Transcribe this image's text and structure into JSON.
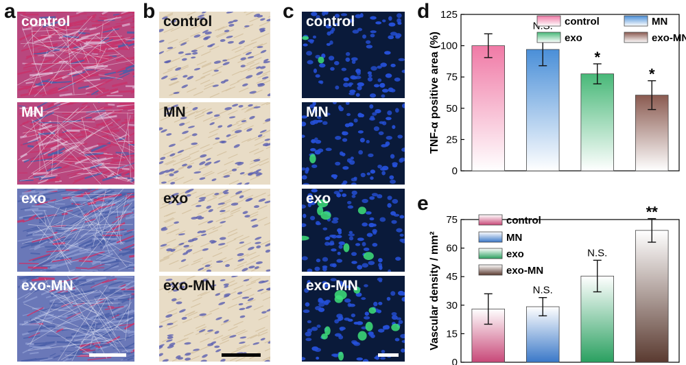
{
  "panels": {
    "a": {
      "label": "a",
      "tiles": [
        "control",
        "MN",
        "exo",
        "exo-MN"
      ]
    },
    "b": {
      "label": "b",
      "tiles": [
        "control",
        "MN",
        "exo",
        "exo-MN"
      ]
    },
    "c": {
      "label": "c",
      "tiles": [
        "control",
        "MN",
        "exo",
        "exo-MN"
      ]
    },
    "d": {
      "label": "d"
    },
    "e": {
      "label": "e"
    }
  },
  "colors": {
    "masson_red": "#c8326a",
    "masson_blue": "#4a5fa8",
    "ihc_bg": "#e8dcc6",
    "ihc_nuclei": "#5a5fb0",
    "fluor_bg": "#0a1a3a",
    "fluor_dapi": "#2550d8",
    "fluor_green": "#3ee07a"
  },
  "chart_data": [
    {
      "type": "bar",
      "panel": "d",
      "categories": [
        "control",
        "MN",
        "exo",
        "exo-MN"
      ],
      "values": [
        100,
        97,
        77.5,
        60.5
      ],
      "errors": [
        9.5,
        13,
        8,
        11.5
      ],
      "significance": [
        "",
        "N.S.",
        "*",
        "*"
      ],
      "ylabel": "TNF-α positive area (%)",
      "ylim": [
        0,
        125
      ],
      "yticks": [
        "0",
        "25",
        "50",
        "75",
        "100",
        "125"
      ],
      "legend": [
        "control",
        "MN",
        "exo",
        "exo-MN"
      ],
      "legend_placement": "top-right",
      "series_colors": [
        "#f07aa6",
        "#4a8fd8",
        "#48b878",
        "#8a5a50"
      ]
    },
    {
      "type": "bar",
      "panel": "e",
      "categories": [
        "control",
        "MN",
        "exo",
        "exo-MN"
      ],
      "values": [
        28,
        29.2,
        45.3,
        69.3
      ],
      "errors": [
        8,
        4.8,
        8.3,
        6.2
      ],
      "significance": [
        "",
        "N.S.",
        "N.S.",
        "**"
      ],
      "ylabel": "Vascular density / mm²",
      "ylim": [
        0,
        75
      ],
      "yticks": [
        "0",
        "15",
        "30",
        "45",
        "60",
        "75"
      ],
      "legend": [
        "control",
        "MN",
        "exo",
        "exo-MN"
      ],
      "legend_placement": "top-left",
      "series_colors": [
        "#c84878",
        "#3a78c8",
        "#2aa060",
        "#5a3a30"
      ]
    }
  ]
}
